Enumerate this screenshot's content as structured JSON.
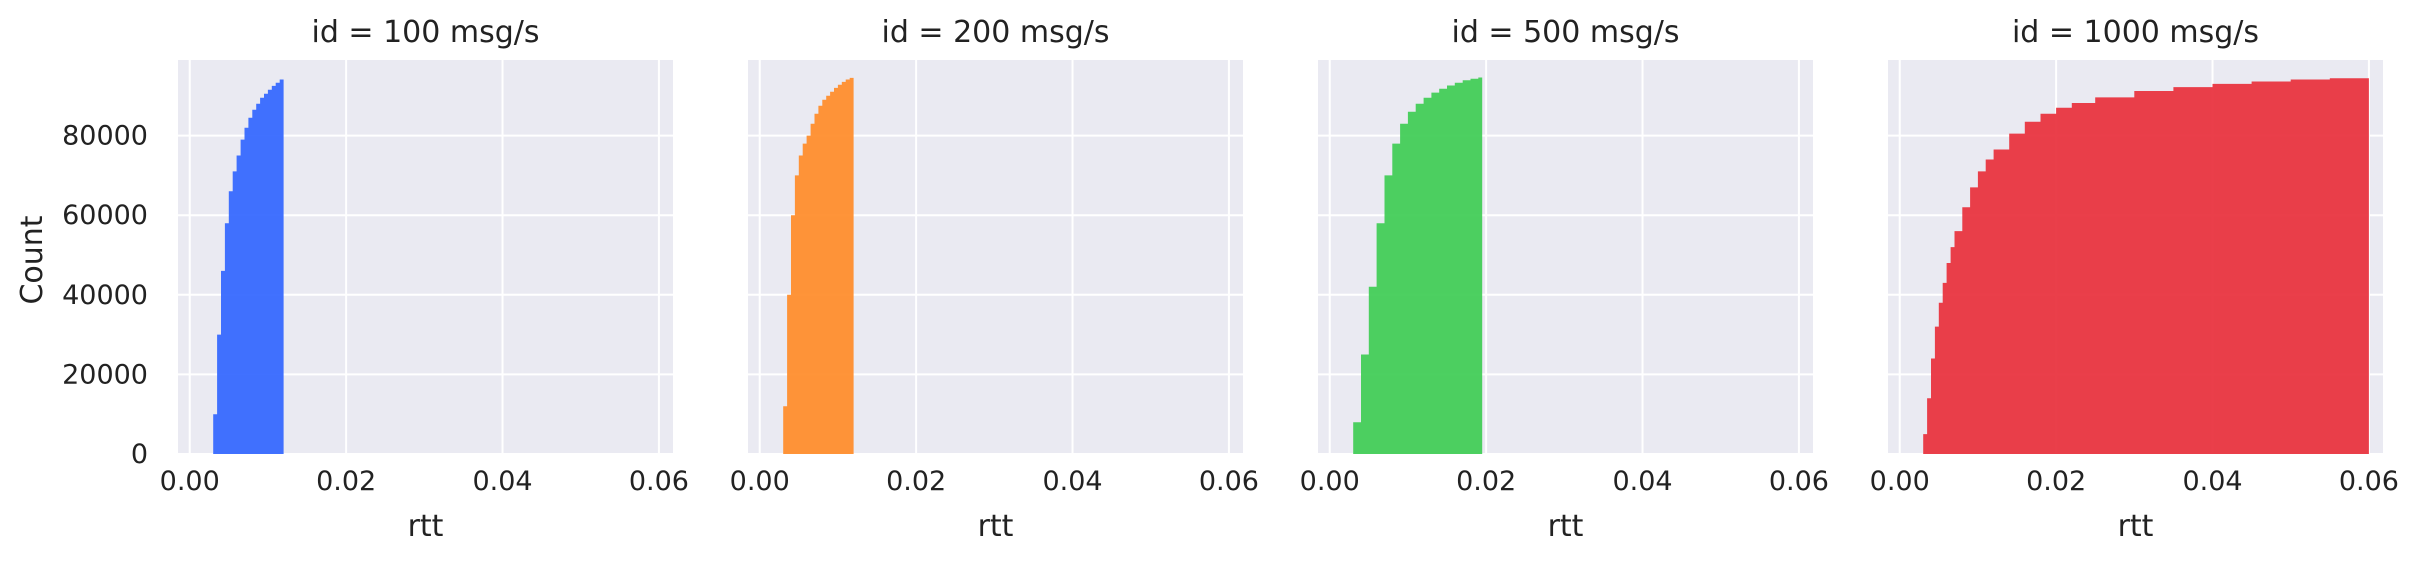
{
  "figure": {
    "ylabel": "Count",
    "background": "#ffffff",
    "axes_background": "#eaeaf2",
    "grid_color": "#ffffff"
  },
  "chart_data": [
    {
      "type": "area",
      "title": "id = 100 msg/s",
      "xlabel": "rtt",
      "ylabel": "Count",
      "xlim": [
        -0.0015,
        0.0618
      ],
      "ylim": [
        0,
        99000
      ],
      "xticks": [
        "0.00",
        "0.02",
        "0.04",
        "0.06"
      ],
      "yticks": [
        "0",
        "20000",
        "40000",
        "60000",
        "80000"
      ],
      "grid": true,
      "color": "#3366ff",
      "series": [
        {
          "x": [
            0.0026,
            0.003,
            0.0035,
            0.004,
            0.0045,
            0.005,
            0.0055,
            0.006,
            0.0065,
            0.007,
            0.0075,
            0.008,
            0.0085,
            0.009,
            0.0095,
            0.01,
            0.0105,
            0.011,
            0.0115,
            0.012
          ],
          "y": [
            0,
            10000,
            30000,
            46000,
            58000,
            66000,
            71000,
            75000,
            79000,
            82000,
            84500,
            86500,
            88000,
            89500,
            90500,
            91500,
            92500,
            93300,
            94100,
            94700
          ]
        }
      ]
    },
    {
      "type": "area",
      "title": "id = 200 msg/s",
      "xlabel": "rtt",
      "ylabel": "",
      "xlim": [
        -0.0015,
        0.0618
      ],
      "ylim": [
        0,
        99000
      ],
      "xticks": [
        "0.00",
        "0.02",
        "0.04",
        "0.06"
      ],
      "yticks": [],
      "grid": true,
      "color": "#ff8c2a",
      "series": [
        {
          "x": [
            0.0026,
            0.003,
            0.0035,
            0.004,
            0.0045,
            0.005,
            0.0055,
            0.006,
            0.0065,
            0.007,
            0.0075,
            0.008,
            0.0085,
            0.009,
            0.0095,
            0.01,
            0.0105,
            0.011,
            0.0115,
            0.012
          ],
          "y": [
            0,
            12000,
            40000,
            60000,
            70000,
            75000,
            78000,
            80000,
            83000,
            85500,
            87500,
            89000,
            90000,
            91000,
            92000,
            92800,
            93500,
            94100,
            94500,
            94700
          ]
        }
      ]
    },
    {
      "type": "area",
      "title": "id = 500 msg/s",
      "xlabel": "rtt",
      "ylabel": "",
      "xlim": [
        -0.0015,
        0.0618
      ],
      "ylim": [
        0,
        99000
      ],
      "xticks": [
        "0.00",
        "0.02",
        "0.04",
        "0.06"
      ],
      "yticks": [],
      "grid": true,
      "color": "#3fcc55",
      "series": [
        {
          "x": [
            0.0026,
            0.003,
            0.004,
            0.005,
            0.006,
            0.007,
            0.008,
            0.009,
            0.01,
            0.011,
            0.012,
            0.013,
            0.014,
            0.015,
            0.016,
            0.017,
            0.018,
            0.019,
            0.0195
          ],
          "y": [
            0,
            8000,
            25000,
            42000,
            58000,
            70000,
            78000,
            83000,
            86000,
            88000,
            89500,
            90800,
            91800,
            92600,
            93300,
            93900,
            94300,
            94600,
            94700
          ]
        }
      ]
    },
    {
      "type": "area",
      "title": "id = 1000 msg/s",
      "xlabel": "rtt",
      "ylabel": "",
      "xlim": [
        -0.0015,
        0.0618
      ],
      "ylim": [
        0,
        99000
      ],
      "xticks": [
        "0.00",
        "0.02",
        "0.04",
        "0.06"
      ],
      "yticks": [],
      "grid": true,
      "color": "#e8303c",
      "series": [
        {
          "x": [
            0.0026,
            0.003,
            0.0035,
            0.004,
            0.0045,
            0.005,
            0.0055,
            0.006,
            0.0065,
            0.007,
            0.008,
            0.009,
            0.01,
            0.011,
            0.012,
            0.014,
            0.016,
            0.018,
            0.02,
            0.022,
            0.025,
            0.03,
            0.035,
            0.04,
            0.045,
            0.05,
            0.055,
            0.06
          ],
          "y": [
            0,
            5000,
            14000,
            24000,
            32000,
            38000,
            43000,
            48000,
            52000,
            56000,
            62000,
            67000,
            71000,
            74000,
            76500,
            80500,
            83500,
            85500,
            87000,
            88200,
            89600,
            91200,
            92200,
            93000,
            93600,
            94100,
            94400,
            94700
          ]
        }
      ]
    }
  ]
}
